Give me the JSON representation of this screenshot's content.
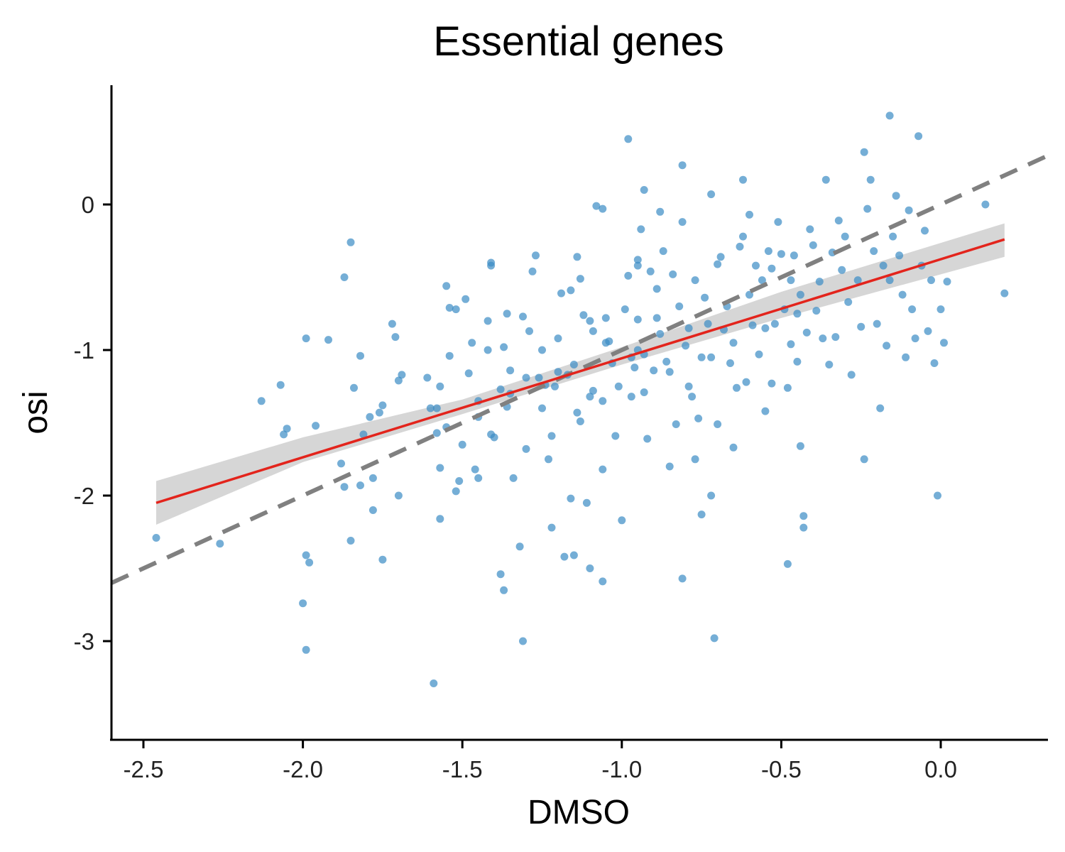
{
  "chart_data": {
    "type": "scatter",
    "title": "Essential genes",
    "xlabel": "DMSO",
    "ylabel": "osi",
    "xlim": [
      -2.6,
      0.33
    ],
    "ylim": [
      -3.66,
      0.82
    ],
    "x_ticks": [
      -2.5,
      -2.0,
      -1.5,
      -1.0,
      -0.5,
      0.0
    ],
    "x_tick_labels": [
      "-2.5",
      "-2.0",
      "-1.5",
      "-1.0",
      "-0.5",
      "0.0"
    ],
    "y_ticks": [
      0,
      -1,
      -2,
      -3
    ],
    "y_tick_labels": [
      "0",
      "-1",
      "-2",
      "-3"
    ],
    "grid": false,
    "legend": "none",
    "colors": {
      "points": "#3a8cc4",
      "regression": "#e3241c",
      "confidence_band": "#d6d6d6",
      "identity_line": "#808080"
    },
    "regression_line": {
      "x": [
        -2.46,
        0.2
      ],
      "y": [
        -2.05,
        -0.24
      ]
    },
    "confidence_band": {
      "x": [
        -2.46,
        -2.0,
        -1.5,
        -1.0,
        -0.5,
        0.2
      ],
      "upper": [
        -1.9,
        -1.6,
        -1.34,
        -0.98,
        -0.6,
        -0.13
      ],
      "lower": [
        -2.2,
        -1.77,
        -1.44,
        -1.1,
        -0.78,
        -0.36
      ]
    },
    "identity_line": {
      "x": [
        -2.6,
        0.33
      ],
      "y": [
        -2.6,
        0.33
      ],
      "style": "dashed"
    },
    "points": [
      [
        -2.46,
        -2.29
      ],
      [
        -2.26,
        -2.33
      ],
      [
        -2.13,
        -1.35
      ],
      [
        -2.07,
        -1.24
      ],
      [
        -2.06,
        -1.58
      ],
      [
        -2.05,
        -1.54
      ],
      [
        -2.0,
        -2.74
      ],
      [
        -1.99,
        -3.06
      ],
      [
        -1.99,
        -2.41
      ],
      [
        -1.98,
        -2.46
      ],
      [
        -1.99,
        -0.92
      ],
      [
        -1.96,
        -1.52
      ],
      [
        -1.92,
        -0.93
      ],
      [
        -1.88,
        -1.78
      ],
      [
        -1.87,
        -1.94
      ],
      [
        -1.85,
        -2.31
      ],
      [
        -1.87,
        -0.5
      ],
      [
        -1.85,
        -0.26
      ],
      [
        -1.84,
        -1.26
      ],
      [
        -1.82,
        -1.93
      ],
      [
        -1.82,
        -1.04
      ],
      [
        -1.81,
        -1.58
      ],
      [
        -1.79,
        -1.46
      ],
      [
        -1.78,
        -1.88
      ],
      [
        -1.78,
        -2.1
      ],
      [
        -1.76,
        -1.43
      ],
      [
        -1.75,
        -1.38
      ],
      [
        -1.75,
        -2.44
      ],
      [
        -1.72,
        -0.82
      ],
      [
        -1.71,
        -0.91
      ],
      [
        -1.7,
        -1.21
      ],
      [
        -1.7,
        -2.0
      ],
      [
        -1.69,
        -1.17
      ],
      [
        -1.61,
        -1.19
      ],
      [
        -1.6,
        -1.4
      ],
      [
        -1.58,
        -1.57
      ],
      [
        -1.58,
        -1.4
      ],
      [
        -1.57,
        -1.25
      ],
      [
        -1.57,
        -2.16
      ],
      [
        -1.59,
        -3.29
      ],
      [
        -1.57,
        -1.81
      ],
      [
        -1.55,
        -0.56
      ],
      [
        -1.55,
        -1.53
      ],
      [
        -1.54,
        -1.04
      ],
      [
        -1.54,
        -0.71
      ],
      [
        -1.52,
        -0.72
      ],
      [
        -1.52,
        -1.97
      ],
      [
        -1.51,
        -1.9
      ],
      [
        -1.5,
        -1.65
      ],
      [
        -1.49,
        -0.65
      ],
      [
        -1.48,
        -1.16
      ],
      [
        -1.47,
        -0.95
      ],
      [
        -1.46,
        -1.82
      ],
      [
        -1.45,
        -1.88
      ],
      [
        -1.45,
        -1.46
      ],
      [
        -1.42,
        -0.8
      ],
      [
        -1.41,
        -0.42
      ],
      [
        -1.41,
        -0.4
      ],
      [
        -1.42,
        -1.0
      ],
      [
        -1.41,
        -1.58
      ],
      [
        -1.4,
        -1.6
      ],
      [
        -1.38,
        -2.54
      ],
      [
        -1.37,
        -2.65
      ],
      [
        -1.38,
        -1.27
      ],
      [
        -1.37,
        -0.98
      ],
      [
        -1.36,
        -0.75
      ],
      [
        -1.36,
        -1.39
      ],
      [
        -1.35,
        -1.14
      ],
      [
        -1.34,
        -1.88
      ],
      [
        -1.32,
        -2.35
      ],
      [
        -1.31,
        -3.0
      ],
      [
        -1.31,
        -0.77
      ],
      [
        -1.3,
        -1.19
      ],
      [
        -1.29,
        -0.87
      ],
      [
        -1.28,
        -0.46
      ],
      [
        -1.27,
        -0.35
      ],
      [
        -1.26,
        -1.19
      ],
      [
        -1.25,
        -1.4
      ],
      [
        -1.24,
        -1.24
      ],
      [
        -1.23,
        -1.75
      ],
      [
        -1.22,
        -1.59
      ],
      [
        -1.22,
        -2.22
      ],
      [
        -1.21,
        -1.25
      ],
      [
        -1.2,
        -0.92
      ],
      [
        -1.19,
        -0.61
      ],
      [
        -1.18,
        -2.42
      ],
      [
        -1.17,
        -1.17
      ],
      [
        -1.16,
        -0.59
      ],
      [
        -1.16,
        -2.02
      ],
      [
        -1.15,
        -2.41
      ],
      [
        -1.14,
        -1.43
      ],
      [
        -1.14,
        -0.36
      ],
      [
        -1.13,
        -1.49
      ],
      [
        -1.13,
        -0.51
      ],
      [
        -1.12,
        -0.76
      ],
      [
        -1.11,
        -2.05
      ],
      [
        -1.1,
        -1.32
      ],
      [
        -1.1,
        -0.8
      ],
      [
        -1.09,
        -0.87
      ],
      [
        -1.09,
        -1.28
      ],
      [
        -1.08,
        -0.01
      ],
      [
        -1.06,
        -0.03
      ],
      [
        -1.06,
        -1.82
      ],
      [
        -1.06,
        -2.59
      ],
      [
        -1.06,
        -1.35
      ],
      [
        -1.05,
        -0.78
      ],
      [
        -1.04,
        -0.94
      ],
      [
        -1.03,
        -1.09
      ],
      [
        -1.02,
        -1.59
      ],
      [
        -1.01,
        -1.25
      ],
      [
        -1.0,
        -2.17
      ],
      [
        -0.99,
        -0.72
      ],
      [
        -0.98,
        -0.49
      ],
      [
        -0.97,
        -1.05
      ],
      [
        -0.97,
        -1.32
      ],
      [
        -0.96,
        -1.12
      ],
      [
        -0.95,
        -0.79
      ],
      [
        -0.95,
        -0.38
      ],
      [
        -0.95,
        -0.42
      ],
      [
        -0.94,
        -0.17
      ],
      [
        -0.93,
        -1.03
      ],
      [
        -0.93,
        -1.29
      ],
      [
        -0.92,
        -1.61
      ],
      [
        -0.91,
        -0.46
      ],
      [
        -0.9,
        -1.14
      ],
      [
        -0.89,
        -0.58
      ],
      [
        -0.89,
        -0.78
      ],
      [
        -0.88,
        -0.89
      ],
      [
        -0.87,
        -0.32
      ],
      [
        -0.86,
        -1.08
      ],
      [
        -0.85,
        -1.8
      ],
      [
        -0.84,
        -0.48
      ],
      [
        -0.83,
        -1.51
      ],
      [
        -0.82,
        -0.7
      ],
      [
        -0.81,
        -0.12
      ],
      [
        -0.81,
        0.27
      ],
      [
        -0.81,
        -2.57
      ],
      [
        -0.8,
        -0.97
      ],
      [
        -0.79,
        -0.85
      ],
      [
        -0.79,
        -1.25
      ],
      [
        -0.78,
        -1.32
      ],
      [
        -0.77,
        -0.52
      ],
      [
        -0.77,
        -1.75
      ],
      [
        -0.76,
        -1.47
      ],
      [
        -0.75,
        -2.13
      ],
      [
        -0.74,
        -0.64
      ],
      [
        -0.73,
        -0.82
      ],
      [
        -0.72,
        -1.05
      ],
      [
        -0.72,
        -2.0
      ],
      [
        -0.71,
        -2.98
      ],
      [
        -0.7,
        -1.51
      ],
      [
        -0.7,
        -0.41
      ],
      [
        -0.69,
        -0.36
      ],
      [
        -0.68,
        -0.86
      ],
      [
        -0.67,
        -0.7
      ],
      [
        -0.66,
        -1.09
      ],
      [
        -0.65,
        -1.67
      ],
      [
        -0.64,
        -1.26
      ],
      [
        -0.63,
        -0.29
      ],
      [
        -0.62,
        -0.22
      ],
      [
        -0.62,
        0.17
      ],
      [
        -0.61,
        -1.22
      ],
      [
        -0.6,
        -0.62
      ],
      [
        -0.6,
        -0.07
      ],
      [
        -0.59,
        -0.83
      ],
      [
        -0.58,
        -0.42
      ],
      [
        -0.57,
        -1.03
      ],
      [
        -0.56,
        -0.52
      ],
      [
        -0.55,
        -1.42
      ],
      [
        -0.54,
        -0.32
      ],
      [
        -0.53,
        -1.23
      ],
      [
        -0.53,
        -0.44
      ],
      [
        -0.52,
        -0.82
      ],
      [
        -0.51,
        -0.12
      ],
      [
        -0.5,
        -0.34
      ],
      [
        -0.49,
        -0.72
      ],
      [
        -0.48,
        -1.26
      ],
      [
        -0.48,
        -2.47
      ],
      [
        -0.47,
        -0.52
      ],
      [
        -0.47,
        -0.96
      ],
      [
        -0.46,
        -0.35
      ],
      [
        -0.45,
        -1.08
      ],
      [
        -0.44,
        -0.62
      ],
      [
        -0.44,
        -1.66
      ],
      [
        -0.43,
        -2.22
      ],
      [
        -0.43,
        -2.14
      ],
      [
        -0.42,
        -0.88
      ],
      [
        -0.41,
        -0.17
      ],
      [
        -0.4,
        -0.28
      ],
      [
        -0.39,
        -0.73
      ],
      [
        -0.38,
        -0.53
      ],
      [
        -0.37,
        -0.92
      ],
      [
        -0.36,
        0.17
      ],
      [
        -0.35,
        -1.1
      ],
      [
        -0.34,
        -0.33
      ],
      [
        -0.33,
        -0.91
      ],
      [
        -0.32,
        -0.11
      ],
      [
        -0.31,
        -0.45
      ],
      [
        -0.3,
        -0.22
      ],
      [
        -0.29,
        -0.67
      ],
      [
        -0.28,
        -1.17
      ],
      [
        -0.26,
        -0.52
      ],
      [
        -0.25,
        -0.84
      ],
      [
        -0.24,
        0.36
      ],
      [
        -0.24,
        -1.75
      ],
      [
        -0.23,
        -0.03
      ],
      [
        -0.22,
        0.17
      ],
      [
        -0.21,
        -0.32
      ],
      [
        -0.2,
        -0.82
      ],
      [
        -0.19,
        -1.4
      ],
      [
        -0.18,
        -0.42
      ],
      [
        -0.17,
        -0.97
      ],
      [
        -0.16,
        -0.52
      ],
      [
        -0.16,
        0.61
      ],
      [
        -0.15,
        -0.22
      ],
      [
        -0.14,
        0.06
      ],
      [
        -0.13,
        -0.35
      ],
      [
        -0.12,
        -0.62
      ],
      [
        -0.11,
        -1.05
      ],
      [
        -0.1,
        -0.04
      ],
      [
        -0.09,
        -0.72
      ],
      [
        -0.08,
        -0.92
      ],
      [
        -0.07,
        0.47
      ],
      [
        -0.06,
        -0.42
      ],
      [
        -0.05,
        -0.18
      ],
      [
        -0.04,
        -0.87
      ],
      [
        -0.03,
        -0.52
      ],
      [
        -0.02,
        -1.09
      ],
      [
        -0.01,
        -2.0
      ],
      [
        0.0,
        -0.72
      ],
      [
        0.01,
        -0.95
      ],
      [
        0.02,
        -0.53
      ],
      [
        0.14,
        0.0
      ],
      [
        0.2,
        -0.61
      ],
      [
        -1.2,
        -1.15
      ],
      [
        -1.25,
        -1.0
      ],
      [
        -1.15,
        -1.1
      ],
      [
        -1.05,
        -0.95
      ],
      [
        -0.95,
        -1.0
      ],
      [
        -0.85,
        -1.15
      ],
      [
        -0.75,
        -1.05
      ],
      [
        -0.65,
        -0.95
      ],
      [
        -0.55,
        -0.85
      ],
      [
        -0.45,
        -0.75
      ],
      [
        -1.35,
        -1.3
      ],
      [
        -1.45,
        -1.35
      ],
      [
        -0.98,
        0.45
      ],
      [
        -0.93,
        0.1
      ],
      [
        -1.1,
        -2.5
      ],
      [
        -0.88,
        -0.05
      ],
      [
        -0.72,
        0.07
      ],
      [
        -1.3,
        -1.68
      ]
    ]
  }
}
